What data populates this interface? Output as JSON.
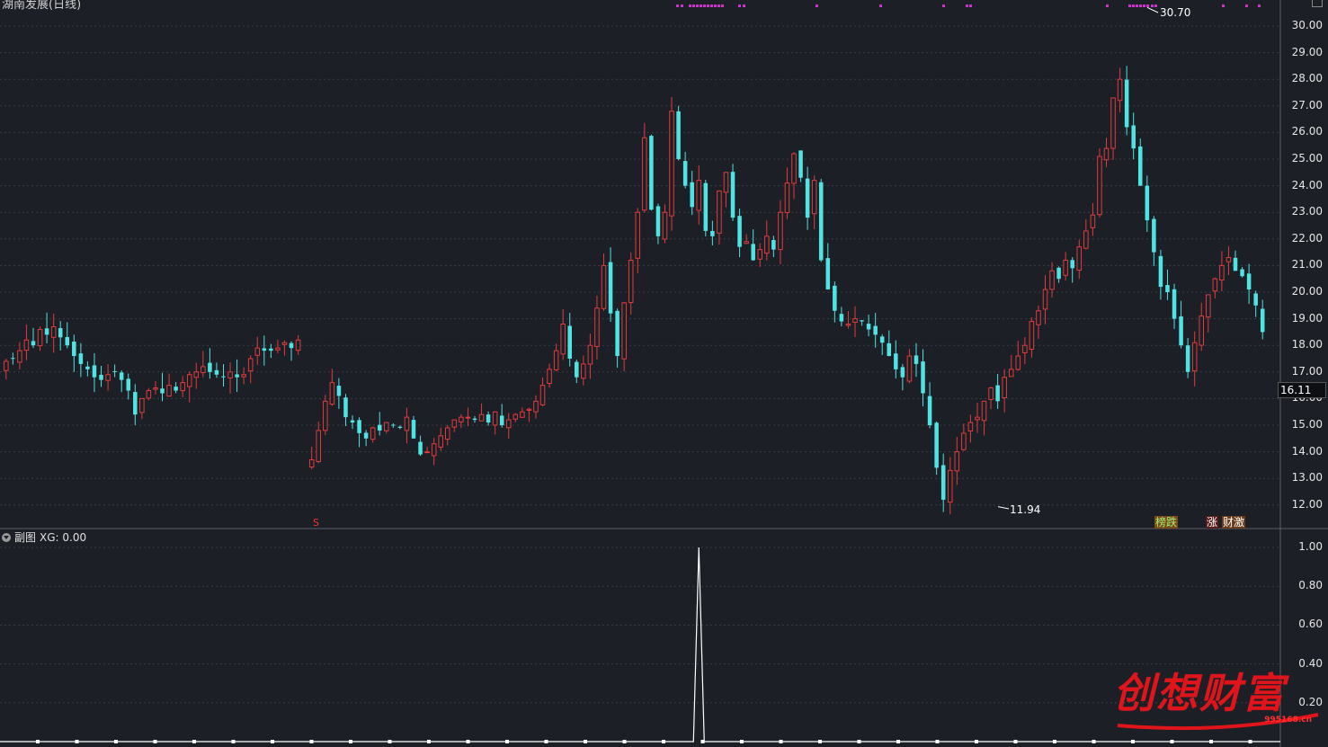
{
  "window": {
    "title": "湖南发展(日线)",
    "subchart_label": "副图",
    "subchart_indicator": "XG: 0.00"
  },
  "price_axis": {
    "ticks": [
      "30.00",
      "29.00",
      "28.00",
      "27.00",
      "26.00",
      "25.00",
      "24.00",
      "23.00",
      "22.00",
      "21.00",
      "20.00",
      "19.00",
      "18.00",
      "17.00",
      "16.00",
      "15.00",
      "14.00",
      "13.00",
      "12.00"
    ],
    "current_price": "16.11",
    "high_label": "30.70",
    "low_label": "11.94"
  },
  "sub_axis": {
    "ticks": [
      "1.00",
      "0.80",
      "0.60",
      "0.40",
      "0.20"
    ]
  },
  "markers": {
    "s_marker": "S",
    "tags": [
      "榜跌",
      "涨",
      "财激"
    ]
  },
  "watermark": {
    "text": "创想财富",
    "url": "995168.cn"
  },
  "colors": {
    "up": "#e03c3c",
    "down": "#4fe3e3",
    "background": "#1c1f26",
    "grid": "#3a3e48",
    "signal": "#ffffff",
    "marker": "#cc33cc"
  },
  "chart_data": {
    "type": "candlestick",
    "ylim": [
      11.6,
      30.9
    ],
    "series": [
      {
        "name": "price",
        "closes": [
          17.4,
          17.5,
          17.8,
          18.2,
          18.0,
          18.6,
          18.4,
          18.7,
          18.3,
          18.0,
          17.6,
          17.3,
          17.1,
          16.8,
          16.7,
          16.9,
          17.0,
          16.7,
          16.3,
          15.4,
          16.0,
          16.3,
          16.4,
          16.2,
          16.5,
          16.3,
          16.6,
          16.9,
          17.0,
          17.2,
          17.0,
          16.9,
          16.8,
          17.0,
          16.8,
          16.9,
          17.5,
          17.9,
          17.8,
          17.8,
          17.9,
          18.1,
          17.9,
          18.2,
          null,
          13.7,
          14.8,
          15.9,
          16.6,
          16.1,
          15.3,
          15.1,
          14.7,
          14.5,
          14.9,
          14.8,
          15.1,
          15.0,
          14.9,
          15.3,
          14.5,
          13.9,
          14.0,
          14.3,
          14.6,
          14.9,
          15.2,
          15.3,
          15.3,
          15.2,
          15.4,
          15.1,
          15.5,
          15.0,
          15.2,
          15.4,
          15.5,
          15.6,
          15.9,
          16.5,
          17.1,
          17.8,
          18.8,
          17.5,
          16.8,
          17.3,
          18.0,
          19.4,
          21.0,
          19.2,
          17.6,
          19.6,
          21.2,
          23.0,
          25.8,
          23.1,
          22.1,
          23.0,
          26.8,
          25.0,
          24.0,
          23.2,
          24.2,
          22.3,
          22.1,
          23.8,
          24.5,
          22.8,
          21.7,
          21.9,
          21.2,
          21.6,
          22.1,
          21.6,
          23.0,
          24.1,
          25.2,
          24.3,
          22.8,
          24.2,
          21.2,
          20.1,
          19.3,
          18.9,
          18.8,
          19.0,
          18.9,
          18.6,
          18.4,
          18.1,
          17.6,
          17.1,
          16.8,
          17.6,
          17.3,
          16.2,
          15.0,
          13.4,
          12.2,
          13.3,
          14.0,
          14.7,
          15.1,
          15.3,
          15.9,
          16.4,
          15.9,
          16.8,
          17.1,
          17.6,
          18.0,
          18.9,
          19.3,
          20.1,
          20.8,
          20.5,
          21.2,
          20.9,
          21.7,
          22.3,
          22.9,
          25.1,
          25.4,
          27.3,
          28.0,
          26.2,
          25.4,
          24.0,
          22.7,
          21.5,
          20.2,
          20.0,
          19.0,
          18.0,
          17.0,
          18.1,
          19.1,
          19.9,
          20.5,
          21.0,
          21.3,
          20.8,
          20.6,
          20.1,
          19.5,
          18.5
        ]
      }
    ],
    "high_annotation": 30.7,
    "low_annotation": 11.94,
    "current_price": 16.11,
    "signal": {
      "name": "XG",
      "value": 0.0,
      "spike_index": 102,
      "spike_value": 1.0,
      "ylim": [
        0,
        1.05
      ]
    }
  }
}
